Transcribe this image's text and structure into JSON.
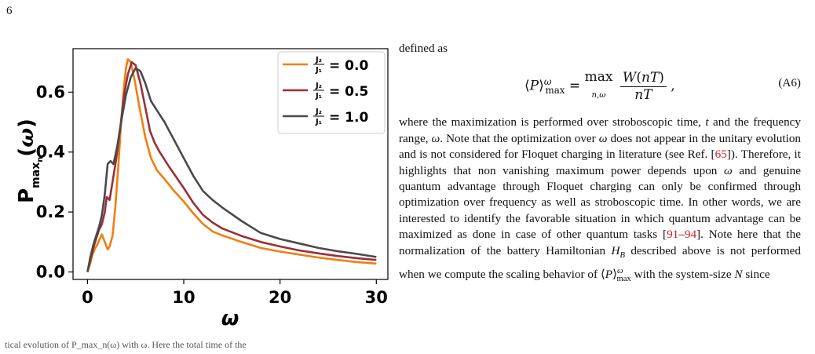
{
  "page": {
    "number": "6"
  },
  "chart_data": {
    "type": "line",
    "xlabel": "ω",
    "ylabel": "P_max_n(ω)",
    "xlim": [
      -1.5,
      31.2
    ],
    "ylim": [
      -0.025,
      0.745
    ],
    "xticks": [
      0,
      10,
      20,
      30
    ],
    "yticks": [
      0.0,
      0.2,
      0.4,
      0.6
    ],
    "xtick_labels": [
      "0",
      "10",
      "20",
      "30"
    ],
    "ytick_labels": [
      "0.0",
      "0.2",
      "0.4",
      "0.6"
    ],
    "grid": false,
    "legend_placement": "top-right",
    "series": [
      {
        "name": "J2/J1 = 0.0",
        "legend_value": "= 0.0",
        "color": "#f07f0e",
        "points": [
          [
            0,
            0
          ],
          [
            0.3,
            0.03
          ],
          [
            0.5,
            0.055
          ],
          [
            0.8,
            0.08
          ],
          [
            1.0,
            0.09
          ],
          [
            1.2,
            0.105
          ],
          [
            1.5,
            0.125
          ],
          [
            1.8,
            0.1
          ],
          [
            2.1,
            0.075
          ],
          [
            2.3,
            0.085
          ],
          [
            2.6,
            0.12
          ],
          [
            2.9,
            0.22
          ],
          [
            3.2,
            0.35
          ],
          [
            3.5,
            0.5
          ],
          [
            3.8,
            0.62
          ],
          [
            4.0,
            0.68
          ],
          [
            4.2,
            0.71
          ],
          [
            4.5,
            0.7
          ],
          [
            4.9,
            0.64
          ],
          [
            5.4,
            0.55
          ],
          [
            6.0,
            0.45
          ],
          [
            6.6,
            0.38
          ],
          [
            7.2,
            0.34
          ],
          [
            8.0,
            0.31
          ],
          [
            9,
            0.27
          ],
          [
            10,
            0.235
          ],
          [
            11,
            0.195
          ],
          [
            12,
            0.16
          ],
          [
            13,
            0.135
          ],
          [
            14,
            0.122
          ],
          [
            16,
            0.1
          ],
          [
            18,
            0.08
          ],
          [
            20,
            0.068
          ],
          [
            22,
            0.058
          ],
          [
            24,
            0.048
          ],
          [
            26,
            0.04
          ],
          [
            28,
            0.033
          ],
          [
            30,
            0.028
          ]
        ]
      },
      {
        "name": "J2/J1 = 0.5",
        "legend_value": "= 0.5",
        "color": "#9b2f37",
        "points": [
          [
            0,
            0
          ],
          [
            0.3,
            0.04
          ],
          [
            0.6,
            0.08
          ],
          [
            0.9,
            0.11
          ],
          [
            1.2,
            0.14
          ],
          [
            1.5,
            0.16
          ],
          [
            1.8,
            0.2
          ],
          [
            2.0,
            0.25
          ],
          [
            2.3,
            0.24
          ],
          [
            2.6,
            0.3
          ],
          [
            3.0,
            0.38
          ],
          [
            3.4,
            0.48
          ],
          [
            3.8,
            0.59
          ],
          [
            4.2,
            0.66
          ],
          [
            4.6,
            0.7
          ],
          [
            5.0,
            0.69
          ],
          [
            5.5,
            0.63
          ],
          [
            6.0,
            0.55
          ],
          [
            6.5,
            0.47
          ],
          [
            7.0,
            0.43
          ],
          [
            7.5,
            0.4
          ],
          [
            8.5,
            0.35
          ],
          [
            10,
            0.28
          ],
          [
            11,
            0.23
          ],
          [
            12,
            0.19
          ],
          [
            13,
            0.165
          ],
          [
            14,
            0.145
          ],
          [
            16,
            0.12
          ],
          [
            18,
            0.1
          ],
          [
            20,
            0.085
          ],
          [
            22,
            0.072
          ],
          [
            24,
            0.062
          ],
          [
            26,
            0.053
          ],
          [
            28,
            0.046
          ],
          [
            30,
            0.04
          ]
        ]
      },
      {
        "name": "J2/J1 = 1.0",
        "legend_value": "= 1.0",
        "color": "#4a4a4a",
        "points": [
          [
            0,
            0
          ],
          [
            0.3,
            0.05
          ],
          [
            0.6,
            0.09
          ],
          [
            0.9,
            0.12
          ],
          [
            1.2,
            0.15
          ],
          [
            1.5,
            0.19
          ],
          [
            1.8,
            0.26
          ],
          [
            2.1,
            0.36
          ],
          [
            2.4,
            0.37
          ],
          [
            2.7,
            0.36
          ],
          [
            3.1,
            0.42
          ],
          [
            3.5,
            0.5
          ],
          [
            4.0,
            0.59
          ],
          [
            4.5,
            0.65
          ],
          [
            5.0,
            0.68
          ],
          [
            5.5,
            0.67
          ],
          [
            6.0,
            0.63
          ],
          [
            6.6,
            0.57
          ],
          [
            7.2,
            0.54
          ],
          [
            8.0,
            0.5
          ],
          [
            9,
            0.44
          ],
          [
            10,
            0.38
          ],
          [
            11,
            0.32
          ],
          [
            12,
            0.27
          ],
          [
            13,
            0.24
          ],
          [
            14,
            0.215
          ],
          [
            16,
            0.17
          ],
          [
            18,
            0.13
          ],
          [
            20,
            0.11
          ],
          [
            22,
            0.095
          ],
          [
            24,
            0.08
          ],
          [
            26,
            0.069
          ],
          [
            28,
            0.06
          ],
          [
            30,
            0.05
          ]
        ]
      }
    ]
  },
  "caption_fragment": "tical evolution of P_max_n(ω) with ω. Here the total time of the",
  "text": {
    "intro": "defined as",
    "equation_number": "(A6)",
    "para_part1": "where the maximization is performed over stroboscopic time,",
    "para_part2": "and the frequency range,",
    "para_part3": ". Note that the optimization over",
    "para_part4": "does not appear in the unitary evolution and is not considered for Floquet charging in literature (see Ref. [",
    "ref_65": "65",
    "para_part5": "]). Therefore, it highlights that non vanishing maximum power depends upon",
    "para_part6": "and genuine quantum advantage through Floquet charging can only be confirmed through optimization over frequency as well as stroboscopic time. In other words, we are interested to identify the favorable situation in which quantum advantage can be maximized as done in case of other quantum tasks [",
    "ref_91": "91",
    "ref_dash": "–",
    "ref_94": "94",
    "para_part7": "]. Note here that the normalization of the battery Hamiltonian",
    "para_part8": "described above is not performed when we compute the scaling behavior of",
    "para_part9": "with the system-size",
    "para_part10": "since"
  }
}
